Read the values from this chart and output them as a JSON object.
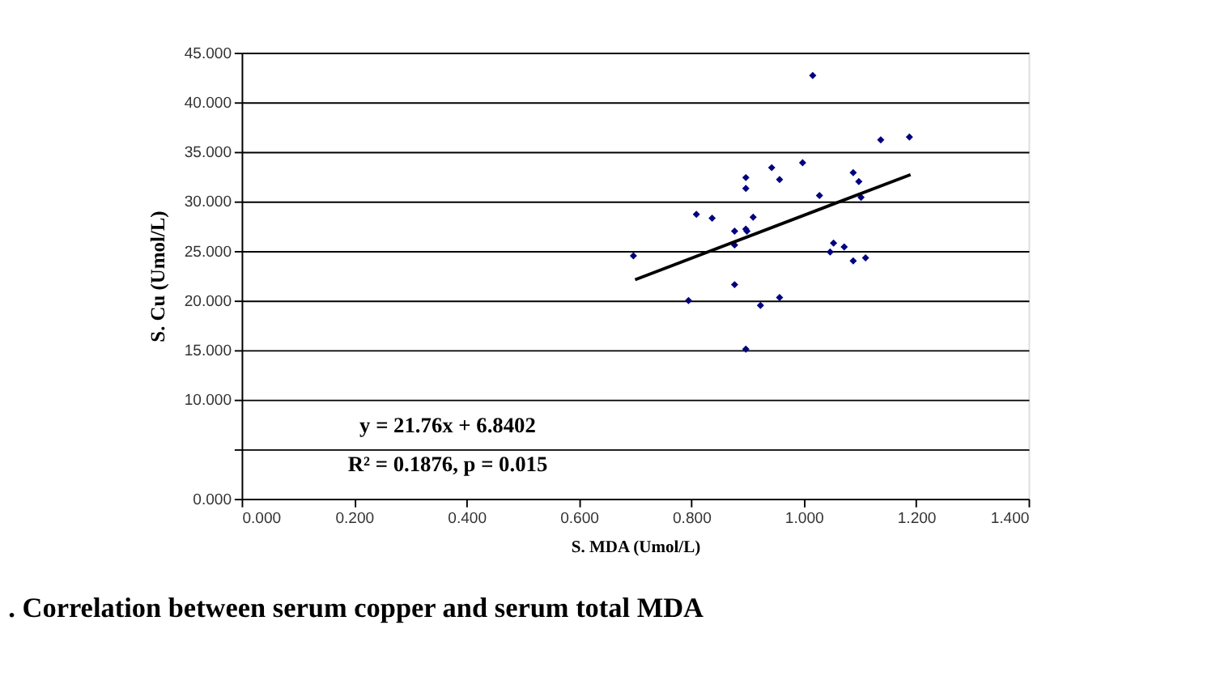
{
  "chart_data": {
    "type": "scatter",
    "xlabel": "S. MDA (Umol/L)",
    "ylabel": "S. Cu (Umol/L)",
    "annotations": [
      "y = 21.76x + 6.8402",
      "R² = 0.1876, p = 0.015",
      ". Correlation between serum copper and serum total MDA"
    ],
    "xlim": [
      0,
      1.4
    ],
    "xticks": [
      {
        "value": 0,
        "label": "0.000"
      },
      {
        "value": 0.2,
        "label": "0.200"
      },
      {
        "value": 0.4,
        "label": "0.400"
      },
      {
        "value": 0.6,
        "label": "0.600"
      },
      {
        "value": 0.8,
        "label": "0.800"
      },
      {
        "value": 1.0,
        "label": "1.000"
      },
      {
        "value": 1.2,
        "label": "1.200"
      },
      {
        "value": 1.4,
        "label": "1.400"
      }
    ],
    "ylim": [
      0,
      45
    ],
    "yticks": [
      {
        "value": 0,
        "label": "0.000"
      },
      {
        "value": 5,
        "label": null
      },
      {
        "value": 10,
        "label": "10.000"
      },
      {
        "value": 15,
        "label": "15.000"
      },
      {
        "value": 20,
        "label": "20.000"
      },
      {
        "value": 25,
        "label": "25.000"
      },
      {
        "value": 30,
        "label": "30.000"
      },
      {
        "value": 35,
        "label": "35.000"
      },
      {
        "value": 40,
        "label": "40.000"
      },
      {
        "value": 45,
        "label": "45.000"
      }
    ],
    "grid": "y",
    "series": [
      {
        "type": "scatter",
        "marker": "diamond",
        "color": "#000080",
        "x": [
          1.016,
          1.137,
          1.188,
          0.943,
          0.998,
          0.897,
          0.897,
          0.957,
          1.088,
          1.098,
          1.102,
          1.028,
          0.809,
          0.837,
          0.91,
          0.877,
          0.897,
          0.899,
          0.877,
          0.697,
          1.053,
          1.072,
          1.047,
          1.088,
          1.11,
          0.877,
          0.795,
          0.957,
          0.923,
          0.897
        ],
        "values": [
          42.7,
          36.2,
          36.5,
          33.4,
          33.9,
          32.4,
          31.3,
          32.2,
          32.9,
          32.0,
          30.4,
          30.6,
          28.7,
          28.3,
          28.4,
          27.0,
          27.2,
          27.0,
          25.6,
          24.5,
          25.8,
          25.4,
          24.9,
          24.0,
          24.3,
          21.6,
          20.0,
          20.3,
          19.5,
          15.1
        ]
      },
      {
        "type": "line",
        "color": "#000000",
        "line_style": "solid",
        "x": [
          0.7,
          1.19
        ],
        "values": [
          22.1,
          32.7
        ]
      }
    ]
  }
}
